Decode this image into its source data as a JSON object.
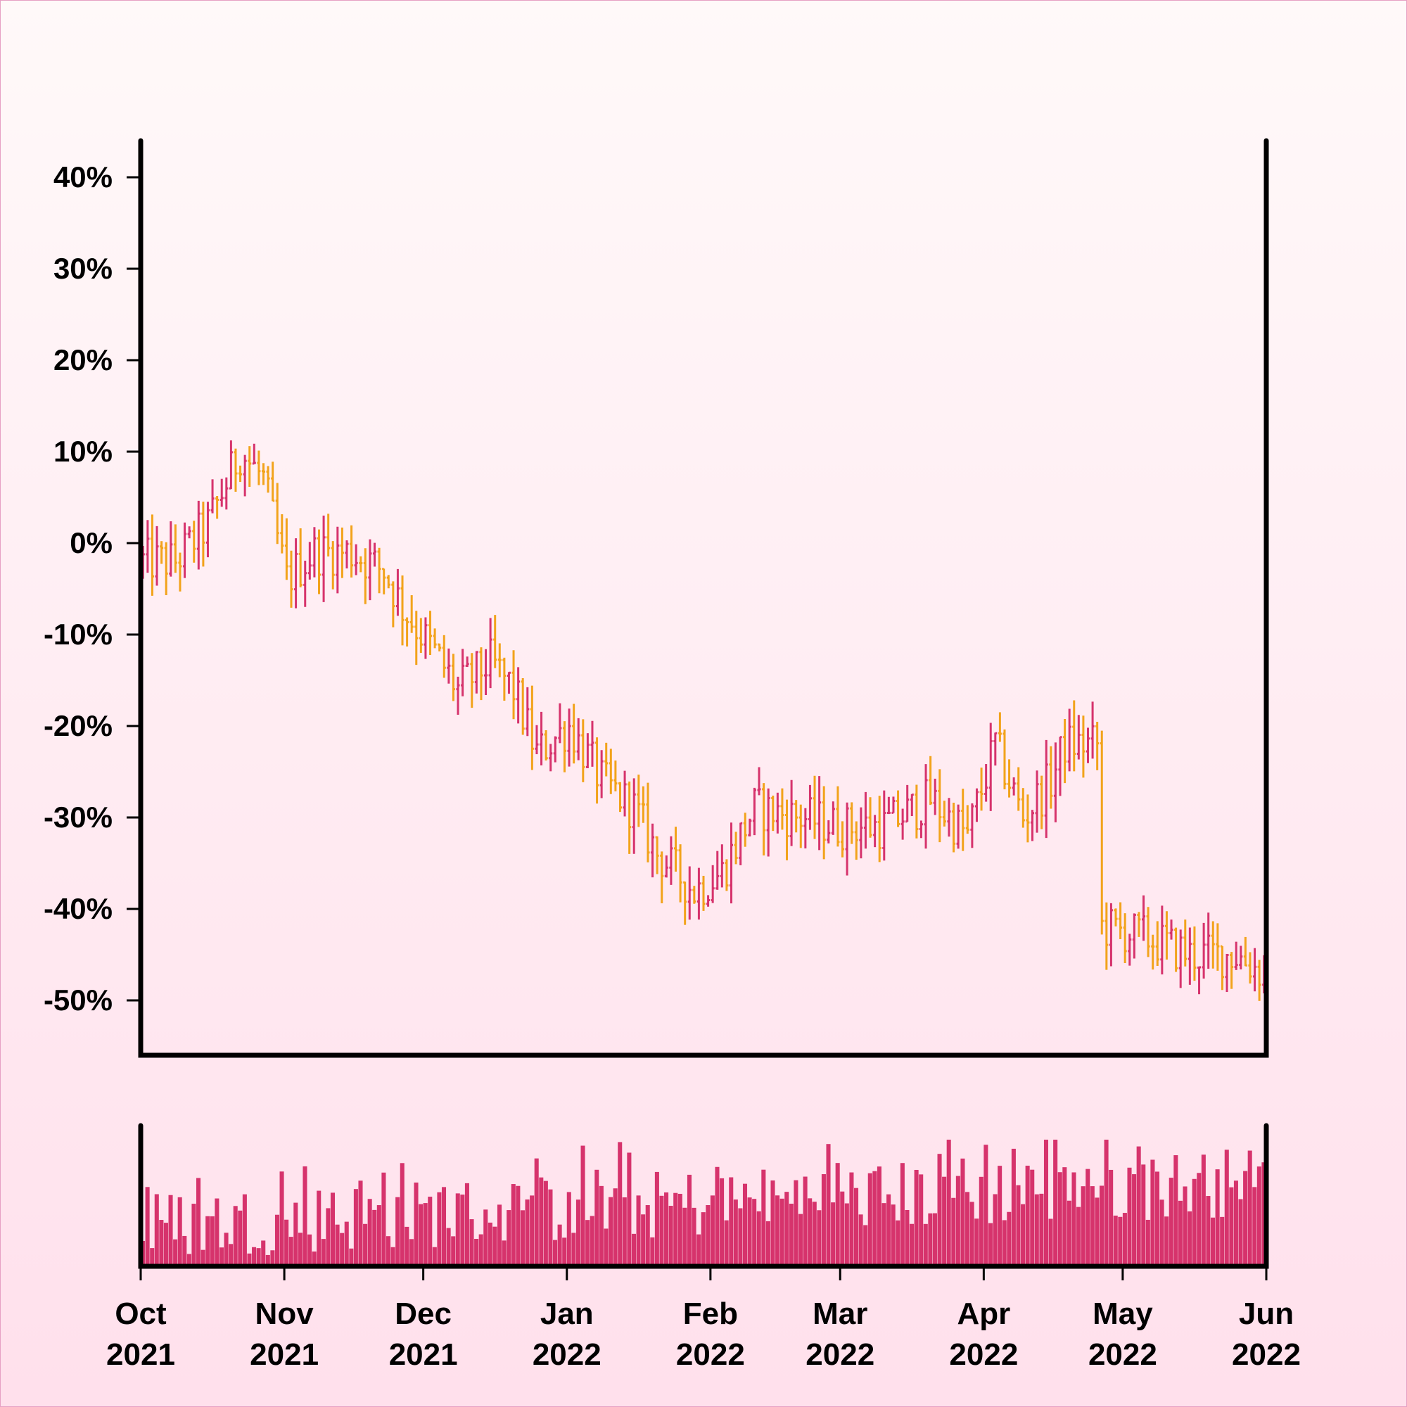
{
  "chart_data": {
    "type": "ohlc",
    "title": "",
    "xlabel": "",
    "ylabel": "",
    "y_format": "percent",
    "ylim": [
      -56,
      44
    ],
    "y_ticks": [
      40,
      30,
      20,
      10,
      0,
      -10,
      -20,
      -30,
      -40,
      -50
    ],
    "y_tick_labels": [
      "40%",
      "30%",
      "20%",
      "10%",
      "0%",
      "-10%",
      "-20%",
      "-30%",
      "-40%",
      "-50%"
    ],
    "x_range": [
      "2021-10-01",
      "2022-06-01"
    ],
    "x_ticks": [
      {
        "date": "2021-10-01",
        "month": "Oct",
        "year": "2021"
      },
      {
        "date": "2021-11-01",
        "month": "Nov",
        "year": "2021"
      },
      {
        "date": "2021-12-01",
        "month": "Dec",
        "year": "2021"
      },
      {
        "date": "2022-01-01",
        "month": "Jan",
        "year": "2022"
      },
      {
        "date": "2022-02-01",
        "month": "Feb",
        "year": "2022"
      },
      {
        "date": "2022-03-01",
        "month": "Mar",
        "year": "2022"
      },
      {
        "date": "2022-04-01",
        "month": "Apr",
        "year": "2022"
      },
      {
        "date": "2022-05-01",
        "month": "May",
        "year": "2022"
      },
      {
        "date": "2022-06-01",
        "month": "Jun",
        "year": "2022"
      }
    ],
    "colors": {
      "up": "#d6336c",
      "down": "#f2a31b",
      "volume": "#d6336c"
    },
    "anchors": [
      [
        "2021-10-01",
        -2
      ],
      [
        "2021-10-08",
        -2
      ],
      [
        "2021-10-15",
        2
      ],
      [
        "2021-10-22",
        10
      ],
      [
        "2021-10-27",
        7
      ],
      [
        "2021-11-01",
        -4
      ],
      [
        "2021-11-07",
        -1
      ],
      [
        "2021-11-15",
        -1
      ],
      [
        "2021-11-22",
        -3
      ],
      [
        "2021-11-26",
        -7
      ],
      [
        "2021-12-03",
        -12
      ],
      [
        "2021-12-08",
        -16
      ],
      [
        "2021-12-15",
        -13
      ],
      [
        "2021-12-20",
        -16
      ],
      [
        "2021-12-25",
        -23
      ],
      [
        "2022-01-01",
        -20
      ],
      [
        "2022-01-08",
        -26
      ],
      [
        "2022-01-15",
        -29
      ],
      [
        "2022-01-20",
        -34
      ],
      [
        "2022-01-28",
        -38
      ],
      [
        "2022-02-03",
        -36
      ],
      [
        "2022-02-10",
        -29
      ],
      [
        "2022-02-20",
        -30
      ],
      [
        "2022-03-01",
        -31
      ],
      [
        "2022-03-10",
        -31
      ],
      [
        "2022-03-20",
        -28
      ],
      [
        "2022-03-28",
        -32
      ],
      [
        "2022-04-03",
        -22
      ],
      [
        "2022-04-09",
        -30
      ],
      [
        "2022-04-15",
        -26
      ],
      [
        "2022-04-18",
        -22
      ],
      [
        "2022-04-25",
        -22
      ],
      [
        "2022-04-26",
        -42
      ],
      [
        "2022-05-05",
        -43
      ],
      [
        "2022-05-15",
        -45
      ],
      [
        "2022-05-25",
        -45
      ],
      [
        "2022-05-31",
        -47
      ]
    ],
    "volume_range": [
      0.05,
      1.0
    ]
  }
}
